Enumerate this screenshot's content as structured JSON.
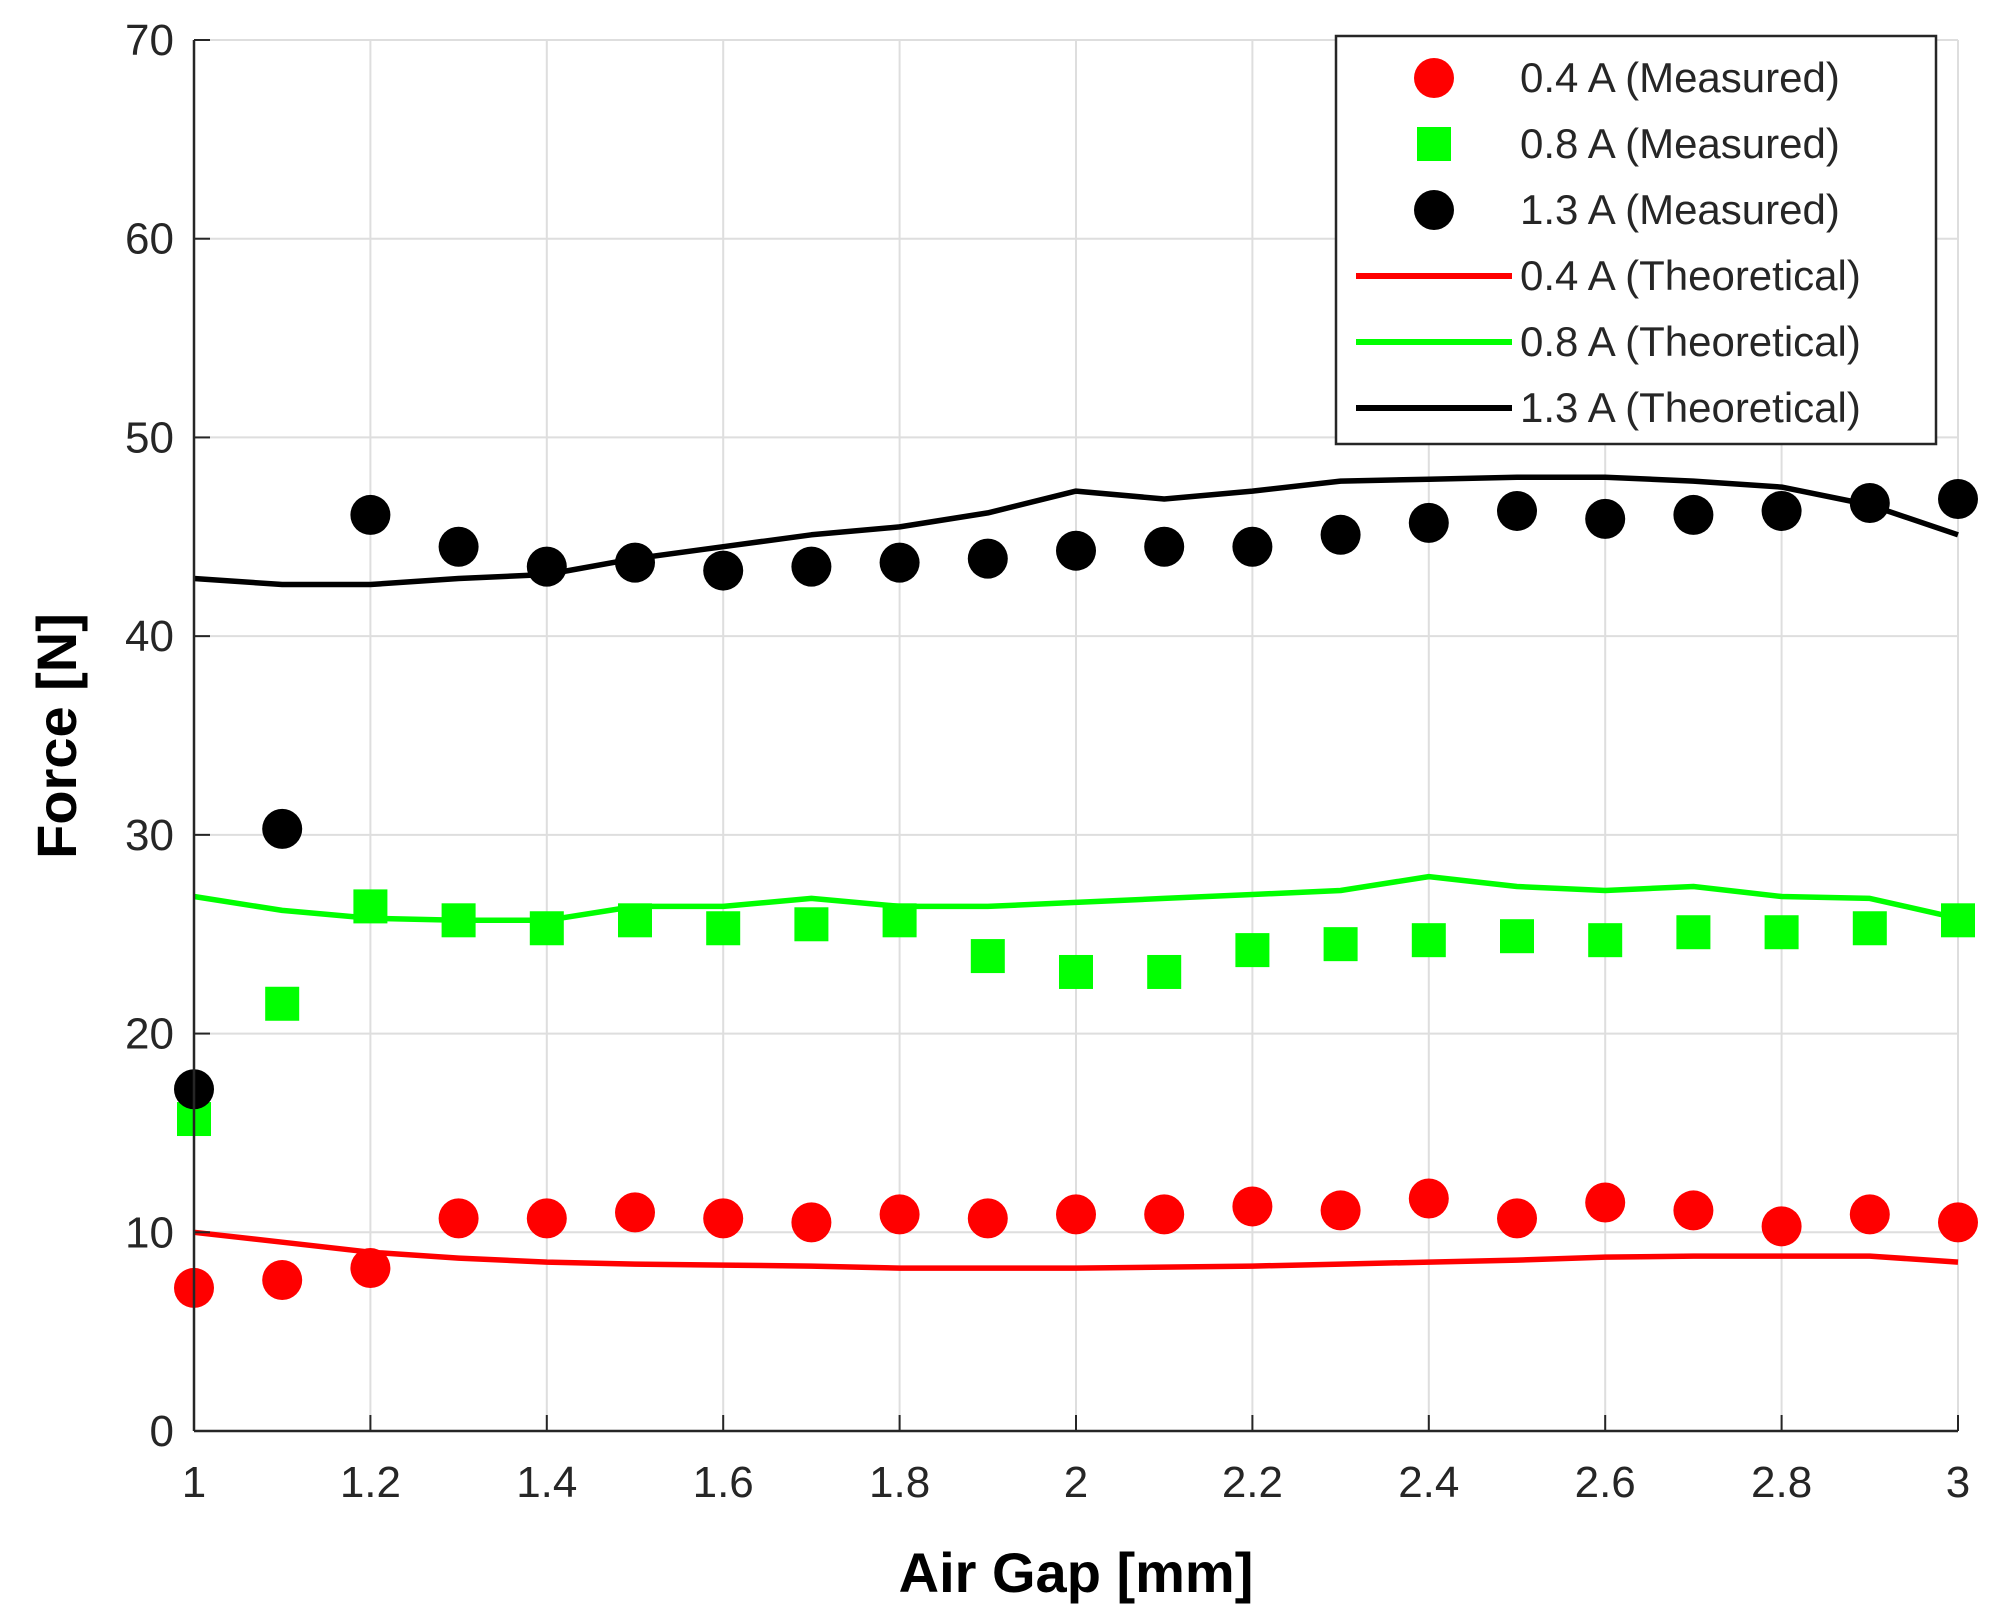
{
  "chart_data": {
    "type": "scatter",
    "title": "",
    "xlabel": "Air Gap [mm]",
    "ylabel": "Force [N]",
    "xlim": [
      1,
      3
    ],
    "ylim": [
      0,
      70
    ],
    "xticks": [
      1,
      1.2,
      1.4,
      1.6,
      1.8,
      2,
      2.2,
      2.4,
      2.6,
      2.8,
      3
    ],
    "xtick_labels": [
      "1",
      "1.2",
      "1.4",
      "1.6",
      "1.8",
      "2",
      "2.2",
      "2.4",
      "2.6",
      "2.8",
      "3"
    ],
    "yticks": [
      0,
      10,
      20,
      30,
      40,
      50,
      60,
      70
    ],
    "ytick_labels": [
      "0",
      "10",
      "20",
      "30",
      "40",
      "50",
      "60",
      "70"
    ],
    "grid": true,
    "legend_position": "top-right",
    "x": [
      1.0,
      1.1,
      1.2,
      1.3,
      1.4,
      1.5,
      1.6,
      1.7,
      1.8,
      1.9,
      2.0,
      2.1,
      2.2,
      2.3,
      2.4,
      2.5,
      2.6,
      2.7,
      2.8,
      2.9,
      3.0
    ],
    "series": [
      {
        "name": "0.4 A (Measured)",
        "kind": "marker",
        "marker": "circle",
        "color": "#ff0000",
        "values": [
          7.2,
          7.6,
          8.2,
          10.7,
          10.7,
          11.0,
          10.7,
          10.5,
          10.9,
          10.7,
          10.9,
          10.9,
          11.3,
          11.1,
          11.7,
          10.7,
          11.5,
          11.1,
          10.3,
          10.9,
          10.5
        ]
      },
      {
        "name": "0.8 A (Measured)",
        "kind": "marker",
        "marker": "square",
        "color": "#00ff00",
        "values": [
          15.7,
          21.5,
          26.4,
          25.7,
          25.3,
          25.7,
          25.3,
          25.5,
          25.7,
          23.9,
          23.1,
          23.1,
          24.2,
          24.5,
          24.7,
          24.9,
          24.7,
          25.1,
          25.1,
          25.3,
          25.7
        ]
      },
      {
        "name": "1.3 A (Measured)",
        "kind": "marker",
        "marker": "circle",
        "color": "#000000",
        "values": [
          17.2,
          30.3,
          46.1,
          44.5,
          43.5,
          43.7,
          43.3,
          43.5,
          43.7,
          43.9,
          44.3,
          44.5,
          44.5,
          45.1,
          45.7,
          46.3,
          45.9,
          46.1,
          46.3,
          46.7,
          46.9
        ]
      },
      {
        "name": "0.4 A (Theoretical)",
        "kind": "line",
        "color": "#ff0000",
        "values": [
          10.0,
          9.5,
          9.0,
          8.7,
          8.5,
          8.4,
          8.35,
          8.3,
          8.2,
          8.2,
          8.2,
          8.25,
          8.3,
          8.4,
          8.5,
          8.6,
          8.75,
          8.8,
          8.8,
          8.8,
          8.5
        ]
      },
      {
        "name": "0.8 A (Theoretical)",
        "kind": "line",
        "color": "#00ff00",
        "values": [
          26.9,
          26.2,
          25.8,
          25.7,
          25.7,
          26.4,
          26.4,
          26.8,
          26.4,
          26.4,
          26.6,
          26.8,
          27.0,
          27.2,
          27.9,
          27.4,
          27.2,
          27.4,
          26.9,
          26.8,
          25.8
        ]
      },
      {
        "name": "1.3 A (Theoretical)",
        "kind": "line",
        "color": "#000000",
        "values": [
          42.9,
          42.6,
          42.6,
          42.9,
          43.1,
          43.9,
          44.5,
          45.1,
          45.5,
          46.2,
          47.3,
          46.9,
          47.3,
          47.8,
          47.9,
          48.0,
          48.0,
          47.8,
          47.5,
          46.6,
          45.1
        ]
      }
    ]
  }
}
